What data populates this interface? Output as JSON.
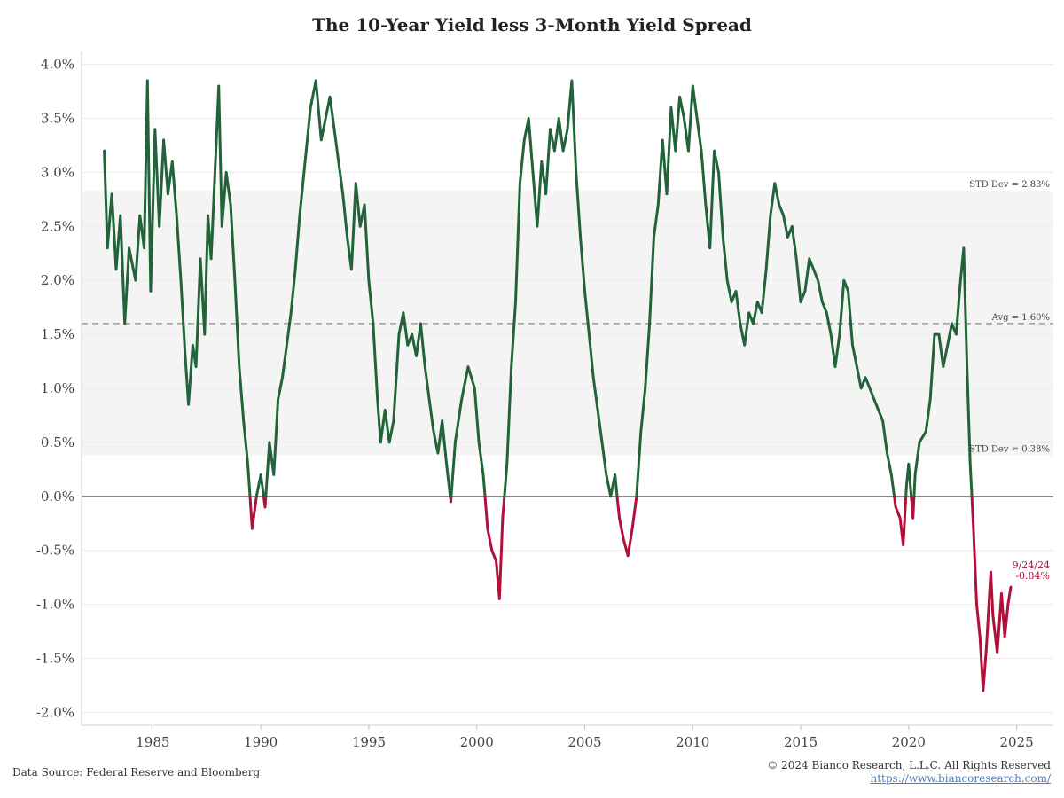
{
  "footer": {
    "source": "Data Source: Federal Reserve and Bloomberg",
    "copyright": "© 2024 Bianco Research, L.L.C. All Rights Reserved",
    "link": "https://www.biancoresearch.com/"
  },
  "chart_data": {
    "type": "line",
    "title": "The 10-Year Yield less 3-Month Yield Spread",
    "xlabel": "",
    "ylabel": "",
    "xlim": [
      1981.7,
      2026.7
    ],
    "ylim": [
      -2.12,
      4.12
    ],
    "x_ticks": [
      1985,
      1990,
      1995,
      2000,
      2005,
      2010,
      2015,
      2020,
      2025
    ],
    "x_tick_labels": [
      "1985",
      "1990",
      "1995",
      "2000",
      "2005",
      "2010",
      "2015",
      "2020",
      "2025"
    ],
    "y_ticks": [
      4.0,
      3.5,
      3.0,
      2.5,
      2.0,
      1.5,
      1.0,
      0.5,
      0.0,
      -0.5,
      -1.0,
      -1.5,
      -2.0
    ],
    "y_tick_labels": [
      "4.0%",
      "3.5%",
      "3.0%",
      "2.5%",
      "2.0%",
      "1.5%",
      "1.0%",
      "0.5%",
      "0.0%",
      "-0.5%",
      "-1.0%",
      "-1.5%",
      "-2.0%"
    ],
    "grid": true,
    "colors": {
      "positive": "#22633a",
      "negative": "#b0103a",
      "band": "#f4f4f4",
      "avg_line": "#9a9a9a",
      "zero_line": "#888888"
    },
    "band": {
      "low": 0.38,
      "high": 2.83
    },
    "annotations": [
      {
        "label": "STD Dev = 2.83%",
        "y": 2.83
      },
      {
        "label": "Avg = 1.60%",
        "y": 1.6
      },
      {
        "label": "STD Dev = 0.38%",
        "y": 0.38
      }
    ],
    "last_point": {
      "date_label": "9/24/24",
      "value_label": "-0.84%",
      "x": 2024.73,
      "y": -0.84
    },
    "series": [
      {
        "values": [
          [
            1982.75,
            3.2
          ],
          [
            1982.9,
            2.3
          ],
          [
            1983.1,
            2.8
          ],
          [
            1983.3,
            2.1
          ],
          [
            1983.5,
            2.6
          ],
          [
            1983.7,
            1.6
          ],
          [
            1983.9,
            2.3
          ],
          [
            1984.2,
            2.0
          ],
          [
            1984.4,
            2.6
          ],
          [
            1984.6,
            2.3
          ],
          [
            1984.75,
            3.85
          ],
          [
            1984.9,
            1.9
          ],
          [
            1985.1,
            3.4
          ],
          [
            1985.3,
            2.5
          ],
          [
            1985.5,
            3.3
          ],
          [
            1985.7,
            2.8
          ],
          [
            1985.9,
            3.1
          ],
          [
            1986.1,
            2.6
          ],
          [
            1986.3,
            2.0
          ],
          [
            1986.5,
            1.3
          ],
          [
            1986.65,
            0.85
          ],
          [
            1986.85,
            1.4
          ],
          [
            1987.0,
            1.2
          ],
          [
            1987.2,
            2.2
          ],
          [
            1987.4,
            1.5
          ],
          [
            1987.55,
            2.6
          ],
          [
            1987.7,
            2.2
          ],
          [
            1987.9,
            3.1
          ],
          [
            1988.05,
            3.8
          ],
          [
            1988.2,
            2.5
          ],
          [
            1988.4,
            3.0
          ],
          [
            1988.6,
            2.7
          ],
          [
            1988.8,
            2.0
          ],
          [
            1989.0,
            1.2
          ],
          [
            1989.2,
            0.7
          ],
          [
            1989.4,
            0.3
          ],
          [
            1989.6,
            -0.3
          ],
          [
            1989.8,
            0.0
          ],
          [
            1990.0,
            0.2
          ],
          [
            1990.2,
            -0.1
          ],
          [
            1990.4,
            0.5
          ],
          [
            1990.6,
            0.2
          ],
          [
            1990.8,
            0.9
          ],
          [
            1991.0,
            1.1
          ],
          [
            1991.2,
            1.4
          ],
          [
            1991.4,
            1.7
          ],
          [
            1991.6,
            2.1
          ],
          [
            1991.8,
            2.6
          ],
          [
            1992.0,
            3.0
          ],
          [
            1992.3,
            3.6
          ],
          [
            1992.55,
            3.85
          ],
          [
            1992.8,
            3.3
          ],
          [
            1993.0,
            3.5
          ],
          [
            1993.2,
            3.7
          ],
          [
            1993.4,
            3.4
          ],
          [
            1993.6,
            3.1
          ],
          [
            1993.8,
            2.8
          ],
          [
            1994.0,
            2.4
          ],
          [
            1994.2,
            2.1
          ],
          [
            1994.4,
            2.9
          ],
          [
            1994.6,
            2.5
          ],
          [
            1994.8,
            2.7
          ],
          [
            1995.0,
            2.0
          ],
          [
            1995.2,
            1.6
          ],
          [
            1995.4,
            0.9
          ],
          [
            1995.55,
            0.5
          ],
          [
            1995.75,
            0.8
          ],
          [
            1995.95,
            0.5
          ],
          [
            1996.15,
            0.7
          ],
          [
            1996.4,
            1.5
          ],
          [
            1996.6,
            1.7
          ],
          [
            1996.8,
            1.4
          ],
          [
            1997.0,
            1.5
          ],
          [
            1997.2,
            1.3
          ],
          [
            1997.4,
            1.6
          ],
          [
            1997.6,
            1.2
          ],
          [
            1997.8,
            0.9
          ],
          [
            1998.0,
            0.6
          ],
          [
            1998.2,
            0.4
          ],
          [
            1998.4,
            0.7
          ],
          [
            1998.6,
            0.3
          ],
          [
            1998.8,
            -0.05
          ],
          [
            1999.0,
            0.5
          ],
          [
            1999.3,
            0.9
          ],
          [
            1999.6,
            1.2
          ],
          [
            1999.9,
            1.0
          ],
          [
            2000.1,
            0.5
          ],
          [
            2000.3,
            0.2
          ],
          [
            2000.5,
            -0.3
          ],
          [
            2000.7,
            -0.5
          ],
          [
            2000.9,
            -0.6
          ],
          [
            2001.05,
            -0.95
          ],
          [
            2001.2,
            -0.2
          ],
          [
            2001.4,
            0.3
          ],
          [
            2001.6,
            1.2
          ],
          [
            2001.8,
            1.8
          ],
          [
            2002.0,
            2.9
          ],
          [
            2002.2,
            3.3
          ],
          [
            2002.4,
            3.5
          ],
          [
            2002.6,
            3.0
          ],
          [
            2002.8,
            2.5
          ],
          [
            2003.0,
            3.1
          ],
          [
            2003.2,
            2.8
          ],
          [
            2003.4,
            3.4
          ],
          [
            2003.6,
            3.2
          ],
          [
            2003.8,
            3.5
          ],
          [
            2004.0,
            3.2
          ],
          [
            2004.2,
            3.4
          ],
          [
            2004.4,
            3.85
          ],
          [
            2004.6,
            3.0
          ],
          [
            2004.8,
            2.4
          ],
          [
            2005.0,
            1.9
          ],
          [
            2005.2,
            1.5
          ],
          [
            2005.4,
            1.1
          ],
          [
            2005.6,
            0.8
          ],
          [
            2005.8,
            0.5
          ],
          [
            2006.0,
            0.2
          ],
          [
            2006.2,
            0.0
          ],
          [
            2006.4,
            0.2
          ],
          [
            2006.6,
            -0.2
          ],
          [
            2006.8,
            -0.4
          ],
          [
            2007.0,
            -0.55
          ],
          [
            2007.2,
            -0.3
          ],
          [
            2007.4,
            0.0
          ],
          [
            2007.6,
            0.6
          ],
          [
            2007.8,
            1.0
          ],
          [
            2008.0,
            1.6
          ],
          [
            2008.2,
            2.4
          ],
          [
            2008.4,
            2.7
          ],
          [
            2008.6,
            3.3
          ],
          [
            2008.8,
            2.8
          ],
          [
            2009.0,
            3.6
          ],
          [
            2009.2,
            3.2
          ],
          [
            2009.4,
            3.7
          ],
          [
            2009.6,
            3.5
          ],
          [
            2009.8,
            3.2
          ],
          [
            2010.0,
            3.8
          ],
          [
            2010.2,
            3.5
          ],
          [
            2010.4,
            3.2
          ],
          [
            2010.6,
            2.7
          ],
          [
            2010.8,
            2.3
          ],
          [
            2011.0,
            3.2
          ],
          [
            2011.2,
            3.0
          ],
          [
            2011.4,
            2.4
          ],
          [
            2011.6,
            2.0
          ],
          [
            2011.8,
            1.8
          ],
          [
            2012.0,
            1.9
          ],
          [
            2012.2,
            1.6
          ],
          [
            2012.4,
            1.4
          ],
          [
            2012.6,
            1.7
          ],
          [
            2012.8,
            1.6
          ],
          [
            2013.0,
            1.8
          ],
          [
            2013.2,
            1.7
          ],
          [
            2013.4,
            2.1
          ],
          [
            2013.6,
            2.6
          ],
          [
            2013.8,
            2.9
          ],
          [
            2014.0,
            2.7
          ],
          [
            2014.2,
            2.6
          ],
          [
            2014.4,
            2.4
          ],
          [
            2014.6,
            2.5
          ],
          [
            2014.8,
            2.2
          ],
          [
            2015.0,
            1.8
          ],
          [
            2015.2,
            1.9
          ],
          [
            2015.4,
            2.2
          ],
          [
            2015.6,
            2.1
          ],
          [
            2015.8,
            2.0
          ],
          [
            2016.0,
            1.8
          ],
          [
            2016.2,
            1.7
          ],
          [
            2016.4,
            1.5
          ],
          [
            2016.6,
            1.2
          ],
          [
            2016.8,
            1.5
          ],
          [
            2017.0,
            2.0
          ],
          [
            2017.2,
            1.9
          ],
          [
            2017.4,
            1.4
          ],
          [
            2017.6,
            1.2
          ],
          [
            2017.8,
            1.0
          ],
          [
            2018.0,
            1.1
          ],
          [
            2018.2,
            1.0
          ],
          [
            2018.4,
            0.9
          ],
          [
            2018.6,
            0.8
          ],
          [
            2018.8,
            0.7
          ],
          [
            2019.0,
            0.4
          ],
          [
            2019.2,
            0.2
          ],
          [
            2019.4,
            -0.1
          ],
          [
            2019.6,
            -0.2
          ],
          [
            2019.75,
            -0.45
          ],
          [
            2019.9,
            0.1
          ],
          [
            2020.0,
            0.3
          ],
          [
            2020.2,
            -0.2
          ],
          [
            2020.3,
            0.2
          ],
          [
            2020.5,
            0.5
          ],
          [
            2020.8,
            0.6
          ],
          [
            2021.0,
            0.9
          ],
          [
            2021.2,
            1.5
          ],
          [
            2021.4,
            1.5
          ],
          [
            2021.6,
            1.2
          ],
          [
            2021.8,
            1.4
          ],
          [
            2022.0,
            1.6
          ],
          [
            2022.2,
            1.5
          ],
          [
            2022.4,
            2.0
          ],
          [
            2022.55,
            2.3
          ],
          [
            2022.7,
            1.2
          ],
          [
            2022.85,
            0.3
          ],
          [
            2023.0,
            -0.3
          ],
          [
            2023.15,
            -1.0
          ],
          [
            2023.3,
            -1.3
          ],
          [
            2023.45,
            -1.8
          ],
          [
            2023.6,
            -1.4
          ],
          [
            2023.8,
            -0.7
          ],
          [
            2023.9,
            -1.1
          ],
          [
            2024.1,
            -1.45
          ],
          [
            2024.3,
            -0.9
          ],
          [
            2024.45,
            -1.3
          ],
          [
            2024.6,
            -1.0
          ],
          [
            2024.73,
            -0.84
          ]
        ]
      }
    ]
  }
}
